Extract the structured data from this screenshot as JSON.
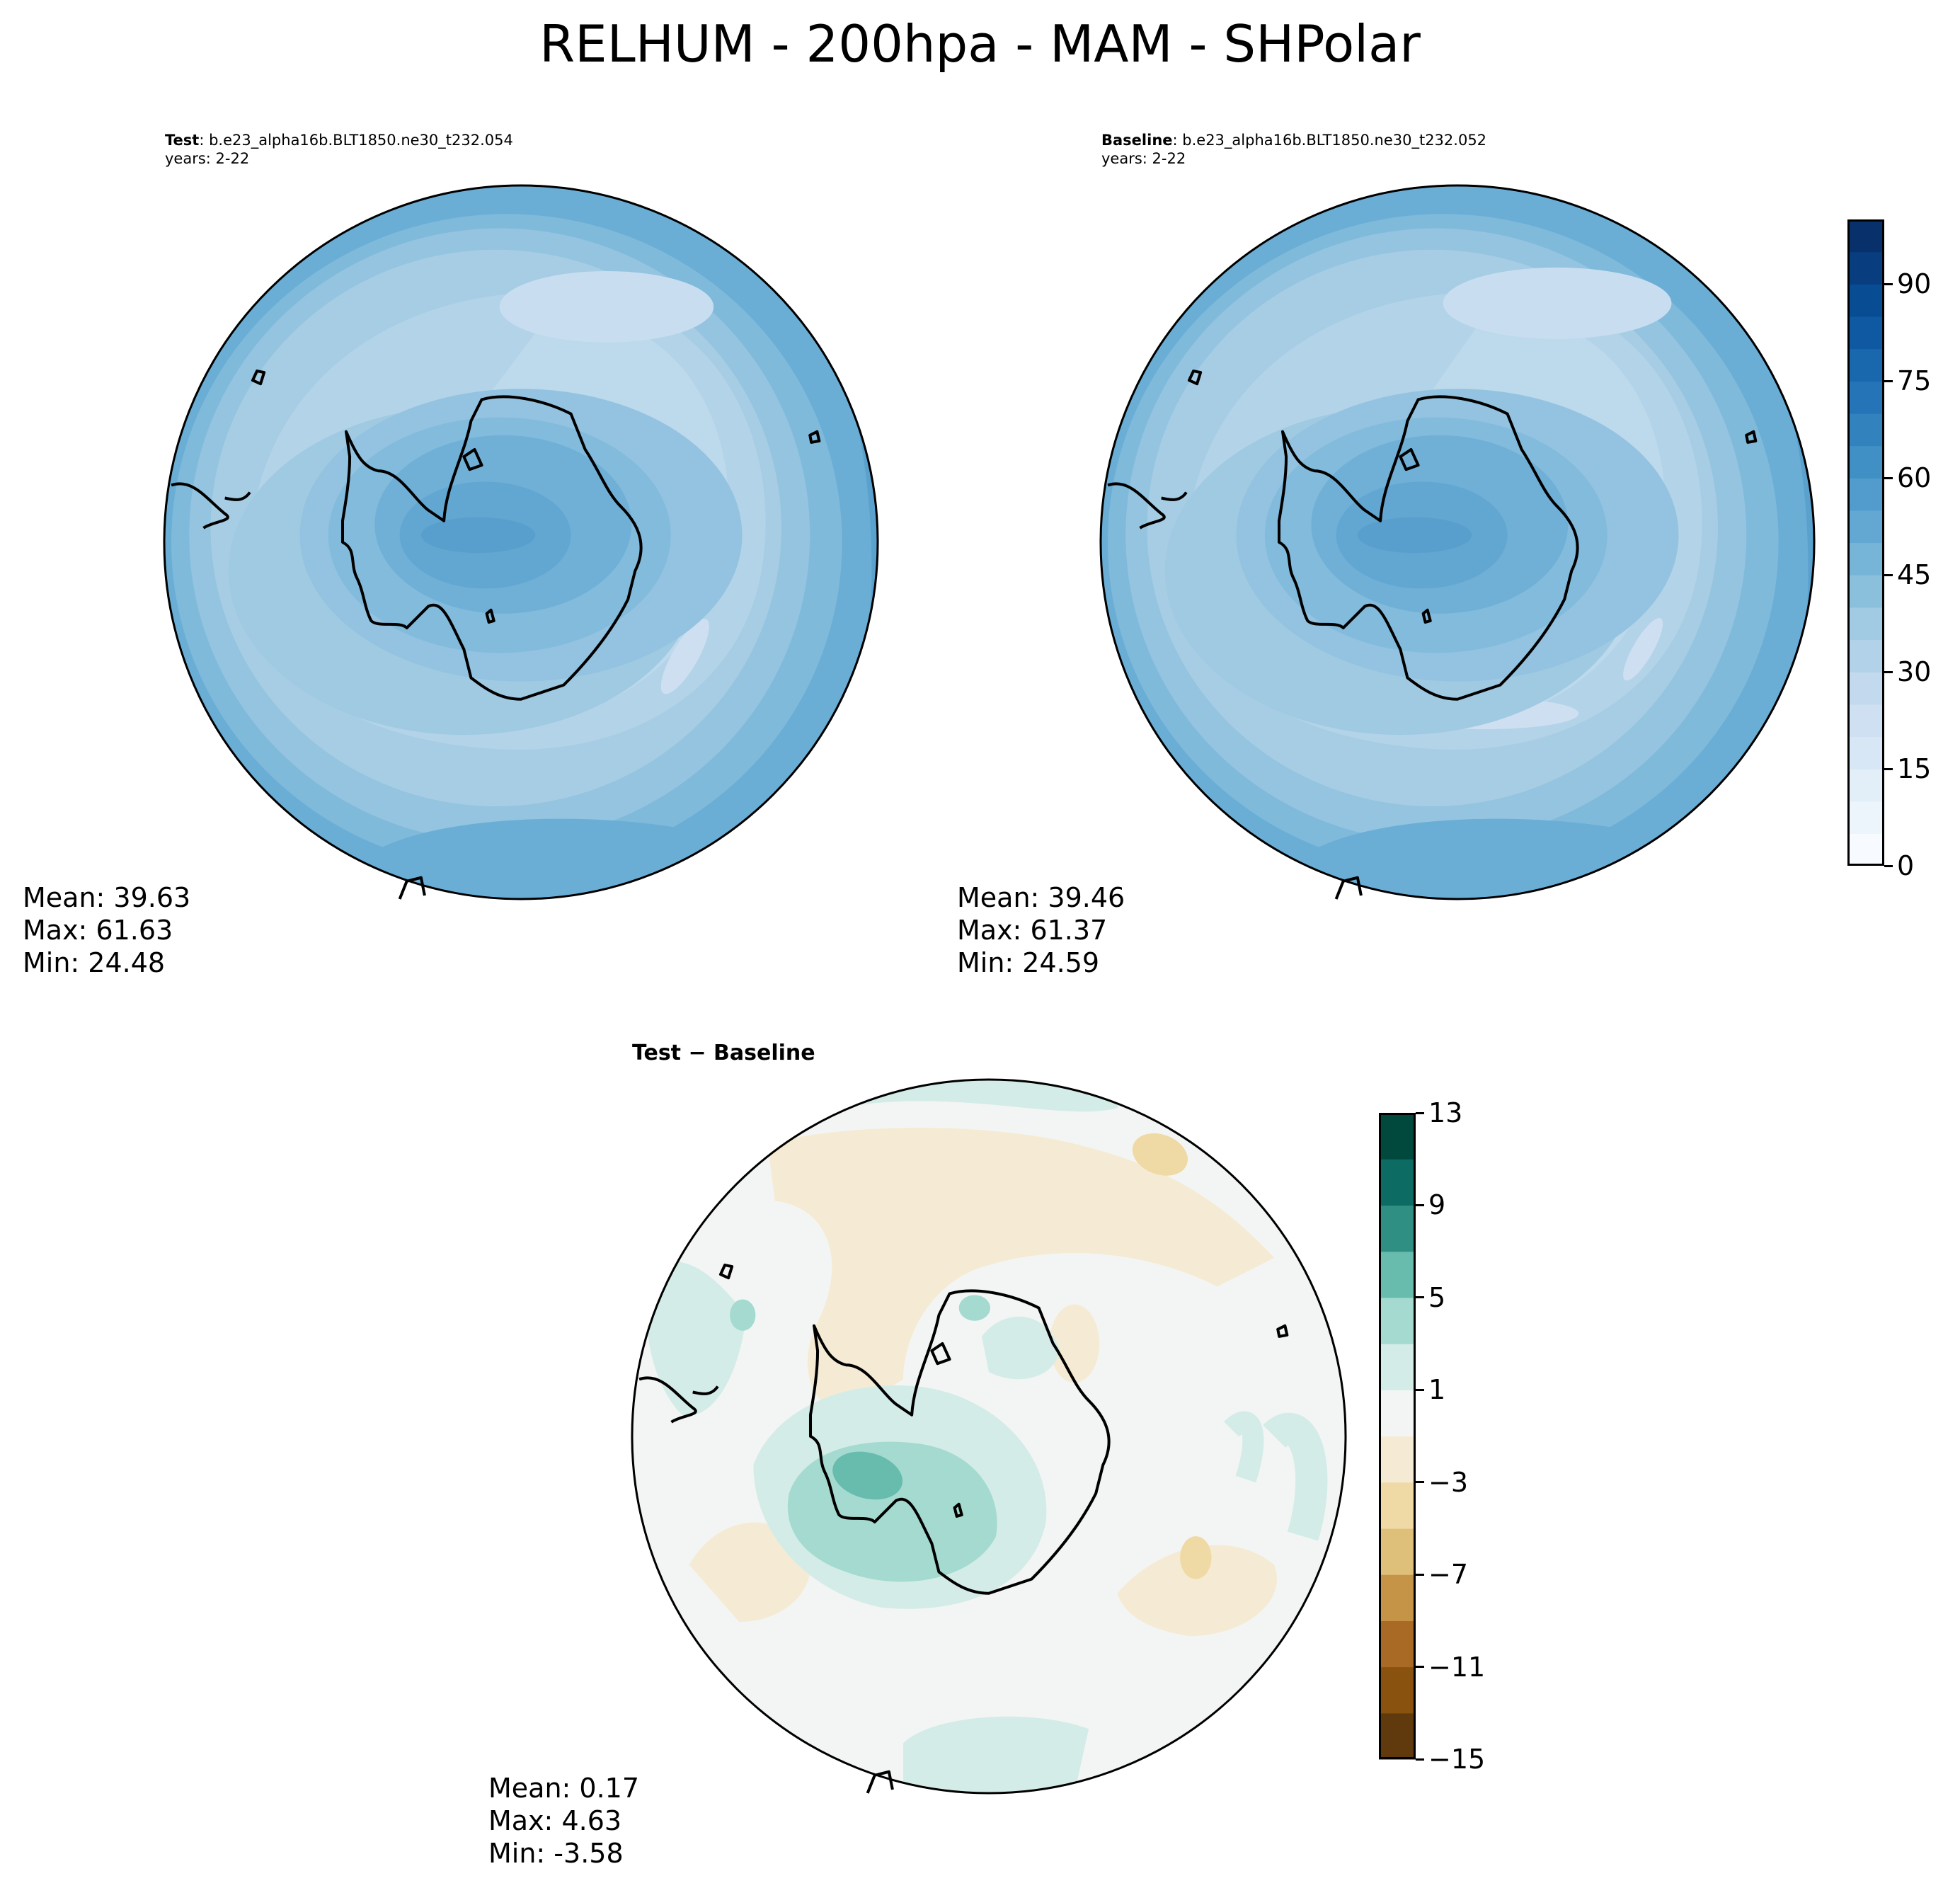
{
  "title": "RELHUM - 200hpa - MAM - SHPolar",
  "colors": {
    "test_ramp": [
      "#08306b",
      "#08519c",
      "#2171b5",
      "#4292c6",
      "#6baed6",
      "#9ecae1",
      "#c6dbef",
      "#deebf7",
      "#f7fbff"
    ],
    "diff_ramp": [
      "#603a0c",
      "#8a520f",
      "#a86a25",
      "#c69447",
      "#dfc07a",
      "#efdaa6",
      "#f5ebd4",
      "#f3f5f4",
      "#d4ece7",
      "#a4dacf",
      "#67bcae",
      "#2f8f82",
      "#0c6c64",
      "#00493c"
    ],
    "coast": "#000000"
  },
  "panels": {
    "test": {
      "label": "Test",
      "case": ": b.e23_alpha16b.BLT1850.ne30_t232.054",
      "years": "years: 2-22",
      "mean": "Mean: 39.63",
      "max": "Max: 61.63",
      "min": "Min: 24.48"
    },
    "baseline": {
      "label": "Baseline",
      "case": ": b.e23_alpha16b.BLT1850.ne30_t232.052",
      "years": "years: 2-22",
      "mean": "Mean: 39.46",
      "max": "Max: 61.37",
      "min": "Min: 24.59"
    },
    "diff": {
      "label": "Test − Baseline",
      "mean": "Mean:  0.17",
      "max": "Max:  4.63",
      "min": "Min: -3.58"
    }
  },
  "colorbars": {
    "main": {
      "ticks": [
        "0",
        "15",
        "30",
        "45",
        "60",
        "75",
        "90"
      ],
      "range": [
        0,
        100
      ],
      "levels": 20
    },
    "diff": {
      "ticks": [
        "−15",
        "−11",
        "−7",
        "−3",
        "1",
        "5",
        "9",
        "13"
      ],
      "range": [
        -15,
        13
      ],
      "levels": 14
    }
  }
}
